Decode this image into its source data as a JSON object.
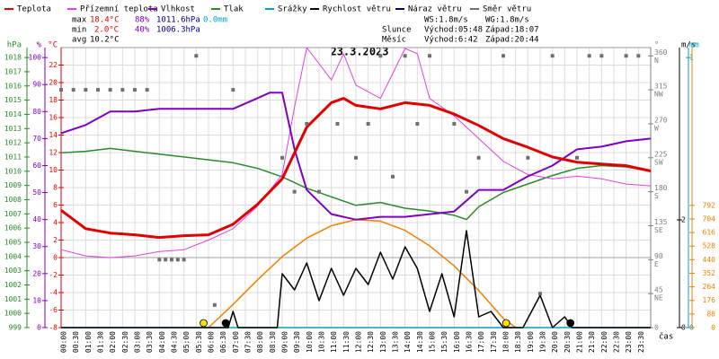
{
  "chart_data": {
    "type": "line",
    "title": "23.3.2023",
    "x_label": "čas",
    "xlim": [
      0,
      24
    ],
    "xticks": [
      {
        "value": 0,
        "label": "00:00"
      },
      {
        "value": 0.5,
        "label": "00:30"
      },
      {
        "value": 1,
        "label": "01:00"
      },
      {
        "value": 1.5,
        "label": "01:30"
      },
      {
        "value": 2,
        "label": "02:00"
      },
      {
        "value": 2.5,
        "label": "02:30"
      },
      {
        "value": 3,
        "label": "03:00"
      },
      {
        "value": 3.5,
        "label": "03:30"
      },
      {
        "value": 4,
        "label": "04:00"
      },
      {
        "value": 4.5,
        "label": "04:30"
      },
      {
        "value": 5,
        "label": "05:00"
      },
      {
        "value": 5.5,
        "label": "05:30"
      },
      {
        "value": 6,
        "label": "06:00"
      },
      {
        "value": 6.5,
        "label": "06:30"
      },
      {
        "value": 7,
        "label": "07:00"
      },
      {
        "value": 7.5,
        "label": "07:30"
      },
      {
        "value": 8,
        "label": "08:00"
      },
      {
        "value": 8.5,
        "label": "08:30"
      },
      {
        "value": 9,
        "label": "09:00"
      },
      {
        "value": 9.5,
        "label": "09:30"
      },
      {
        "value": 10,
        "label": "10:00"
      },
      {
        "value": 10.5,
        "label": "10:30"
      },
      {
        "value": 11,
        "label": "11:00"
      },
      {
        "value": 11.5,
        "label": "11:30"
      },
      {
        "value": 12,
        "label": "12:00"
      },
      {
        "value": 12.5,
        "label": "12:30"
      },
      {
        "value": 13,
        "label": "13:00"
      },
      {
        "value": 13.5,
        "label": "13:30"
      },
      {
        "value": 14,
        "label": "14:00"
      },
      {
        "value": 14.5,
        "label": "14:30"
      },
      {
        "value": 15,
        "label": "15:00"
      },
      {
        "value": 15.5,
        "label": "15:30"
      },
      {
        "value": 16,
        "label": "16:00"
      },
      {
        "value": 16.5,
        "label": "16:30"
      },
      {
        "value": 17,
        "label": "17:00"
      },
      {
        "value": 17.5,
        "label": "17:30"
      },
      {
        "value": 18,
        "label": "18:00"
      },
      {
        "value": 18.5,
        "label": "18:30"
      },
      {
        "value": 19,
        "label": "19:00"
      },
      {
        "value": 19.5,
        "label": "19:30"
      },
      {
        "value": 20,
        "label": "20:00"
      },
      {
        "value": 20.5,
        "label": "20:30"
      },
      {
        "value": 21,
        "label": "21:00"
      },
      {
        "value": 21.5,
        "label": "21:30"
      },
      {
        "value": 22,
        "label": "22:00"
      },
      {
        "value": 22.5,
        "label": "22:30"
      },
      {
        "value": 23,
        "label": "23:00"
      },
      {
        "value": 23.5,
        "label": "23:30"
      }
    ],
    "grid": true,
    "axes": {
      "hpa": {
        "label": "hPa",
        "color": "#2a8a2a",
        "side": "left",
        "ylim": [
          999,
          1018.7
        ],
        "yticks": [
          999,
          1000,
          1001,
          1002,
          1003,
          1004,
          1005,
          1006,
          1007,
          1008,
          1009,
          1010,
          1011,
          1012,
          1013,
          1014,
          1015,
          1016,
          1017,
          1018
        ]
      },
      "pct": {
        "label": "%",
        "color": "#8000c0",
        "side": "left",
        "ylim": [
          0,
          103.7
        ],
        "yticks": [
          0,
          10,
          20,
          30,
          40,
          50,
          60,
          70,
          80,
          90,
          100
        ]
      },
      "temp": {
        "label": "°C",
        "color": "#e00000",
        "side": "left",
        "ylim": [
          -8,
          24
        ],
        "yticks": [
          -8,
          -6,
          -4,
          -2,
          0,
          2,
          4,
          6,
          8,
          10,
          12,
          14,
          16,
          18,
          20,
          22
        ]
      },
      "dir": {
        "label": "°",
        "color": "#808080",
        "side": "right",
        "ylim": [
          0,
          371
        ],
        "yticks": [
          {
            "value": 0,
            "label": "0"
          },
          {
            "value": 45,
            "label": "45",
            "dir": "NE"
          },
          {
            "value": 90,
            "label": "90",
            "dir": "E"
          },
          {
            "value": 135,
            "label": "135",
            "dir": "SE"
          },
          {
            "value": 180,
            "label": "180",
            "dir": "S"
          },
          {
            "value": 225,
            "label": "225",
            "dir": "SW"
          },
          {
            "value": 270,
            "label": "270",
            "dir": "W"
          },
          {
            "value": 315,
            "label": "315",
            "dir": "NW"
          },
          {
            "value": 360,
            "label": "360",
            "dir": "N"
          }
        ]
      },
      "ms": {
        "label": "m/s",
        "color": "#000000",
        "side": "right",
        "ylim": [
          0,
          5.2
        ],
        "yticks": [
          0,
          2
        ]
      },
      "mm": {
        "label": "mm",
        "color": "#00a0c0",
        "side": "right",
        "ylim": [
          0,
          1.037
        ],
        "yticks": [
          0,
          1
        ]
      },
      "wm": {
        "color": "#f08000",
        "side": "right",
        "ylim": [
          0,
          1815
        ],
        "yticks": [
          0,
          88,
          176,
          264,
          352,
          440,
          528,
          616,
          704,
          792
        ]
      }
    },
    "series": [
      {
        "name": "Teplota",
        "color": "#e00000",
        "axis": "temp",
        "width": 3,
        "x": [
          0,
          1,
          2,
          3,
          4,
          5,
          6,
          7,
          8,
          9,
          10,
          11,
          11.5,
          12,
          13,
          14,
          15,
          16,
          17,
          18,
          19,
          20,
          21,
          22,
          23,
          24
        ],
        "values": [
          5.4,
          3.3,
          2.8,
          2.6,
          2.3,
          2.5,
          2.6,
          3.8,
          6.1,
          9.0,
          14.9,
          17.7,
          18.2,
          17.4,
          17.0,
          17.7,
          17.4,
          16.4,
          15.1,
          13.6,
          12.6,
          11.5,
          10.9,
          10.7,
          10.5,
          9.9
        ]
      },
      {
        "name": "Přízemní teplota",
        "color": "#e040e0",
        "axis": "temp",
        "width": 1,
        "x": [
          0,
          1,
          2,
          3,
          4,
          5,
          6,
          7,
          8,
          9,
          9.5,
          10,
          11,
          11.5,
          12,
          13,
          14,
          14.5,
          15,
          16,
          17,
          18,
          19,
          20,
          21,
          22,
          23,
          24
        ],
        "values": [
          0.9,
          0.2,
          0.0,
          0.2,
          0.7,
          0.9,
          2.0,
          3.3,
          5.9,
          9.5,
          17.2,
          24.0,
          20.3,
          23.3,
          19.7,
          18.2,
          23.9,
          23.3,
          18.2,
          16.2,
          13.6,
          11.0,
          9.5,
          9.0,
          9.3,
          9.0,
          8.4,
          8.2
        ]
      },
      {
        "name": "Vlhkost",
        "color": "#8000c0",
        "axis": "pct",
        "width": 2,
        "x": [
          0,
          1,
          2,
          3,
          4,
          5,
          6,
          7,
          8,
          8.5,
          9,
          9.5,
          10,
          11,
          12,
          13,
          14,
          15,
          16,
          17,
          18,
          19,
          20,
          21,
          22,
          23,
          24
        ],
        "values": [
          72,
          75,
          80,
          80,
          81,
          81,
          81,
          81,
          85,
          87,
          87,
          66,
          51,
          42,
          40,
          41,
          41,
          42,
          43,
          51,
          51,
          56,
          60,
          66,
          67,
          69,
          70
        ]
      },
      {
        "name": "Tlak",
        "color": "#2a8a2a",
        "axis": "hpa",
        "width": 1.5,
        "x": [
          0,
          1,
          2,
          3,
          4,
          5,
          6,
          7,
          8,
          9,
          10,
          11,
          12,
          13,
          14,
          15,
          16,
          16.5,
          17,
          18,
          19,
          20,
          21,
          22,
          23,
          24
        ],
        "values": [
          1011.3,
          1011.4,
          1011.6,
          1011.4,
          1011.2,
          1011.0,
          1010.8,
          1010.6,
          1010.2,
          1009.6,
          1008.8,
          1008.2,
          1007.6,
          1007.8,
          1007.4,
          1007.2,
          1006.9,
          1006.6,
          1007.5,
          1008.5,
          1009.1,
          1009.7,
          1010.2,
          1010.4,
          1010.3,
          1010.0
        ]
      },
      {
        "name": "Srážky",
        "color": "#00a0c0",
        "axis": "mm",
        "width": 1.5,
        "x": [
          0,
          24
        ],
        "values": [
          0,
          0
        ]
      },
      {
        "name": "Rychlost větru",
        "color": "#000000",
        "axis": "ms",
        "width": 1.5,
        "x": [
          0,
          6.8,
          7,
          7.2,
          8.8,
          9,
          9.5,
          10,
          10.5,
          11,
          11.5,
          12,
          12.5,
          13,
          13.5,
          14,
          14.5,
          15,
          15.5,
          16,
          16.5,
          17,
          17.5,
          18,
          18.8,
          19.5,
          20,
          20.5,
          20.8,
          24
        ],
        "values": [
          0,
          0,
          0.3,
          0,
          0,
          1.0,
          0.7,
          1.2,
          0.5,
          1.1,
          0.6,
          1.1,
          0.8,
          1.4,
          0.9,
          1.5,
          1.1,
          0.3,
          1.0,
          0.2,
          1.8,
          0.2,
          0.3,
          0,
          0,
          0.6,
          0,
          0.2,
          0,
          0
        ]
      },
      {
        "name": "Náraz větru",
        "color": "#000080",
        "axis": "ms",
        "width": 1,
        "x": [],
        "values": []
      },
      {
        "name": "Směr větru",
        "color": "#707070",
        "axis": "dir",
        "marker": "square",
        "x": [
          0,
          0.5,
          1,
          1.5,
          2,
          2.5,
          3,
          3.5,
          4,
          4.25,
          4.5,
          4.75,
          5,
          5.5,
          6.25,
          7,
          9,
          9.5,
          10,
          10.5,
          11.25,
          12,
          12.5,
          13,
          13.5,
          14,
          14.5,
          15,
          16,
          16.5,
          17,
          18,
          19,
          19.5,
          20,
          21,
          21.5,
          22,
          23,
          23.5
        ],
        "values": [
          315,
          315,
          315,
          315,
          315,
          315,
          315,
          315,
          90,
          90,
          90,
          90,
          90,
          360,
          30,
          315,
          225,
          180,
          270,
          180,
          270,
          225,
          270,
          360,
          200,
          360,
          270,
          360,
          270,
          180,
          225,
          360,
          225,
          45,
          360,
          225,
          360,
          360,
          360,
          360
        ]
      },
      {
        "name": "Slunce",
        "color": "#f08000",
        "axis": "wm",
        "width": 1.5,
        "x": [
          6,
          7,
          8,
          9,
          10,
          11,
          12,
          13,
          14,
          15,
          16,
          17,
          18,
          18.5
        ],
        "values": [
          0,
          150,
          310,
          460,
          580,
          660,
          700,
          690,
          630,
          530,
          400,
          240,
          60,
          0
        ]
      }
    ]
  },
  "stats": {
    "max": {
      "label": "max",
      "temp": "18.4°C",
      "hum": "88%",
      "press": "1011.6hPa",
      "rain": "0.0mm"
    },
    "min": {
      "label": "min",
      "temp": "2.0°C",
      "hum": "40%",
      "press": "1006.3hPa"
    },
    "avg": {
      "label": "avg",
      "temp": "10.2°C"
    }
  },
  "wind": {
    "ws": "WS:1.8m/s",
    "wg": "WG:1.8m/s"
  },
  "sun": {
    "label": "Slunce",
    "rise": "Východ:05:48",
    "set": "Západ:18:07"
  },
  "moon": {
    "label": "Měsíc",
    "rise": "Východ:6:42",
    "set": "Západ:20:44"
  }
}
